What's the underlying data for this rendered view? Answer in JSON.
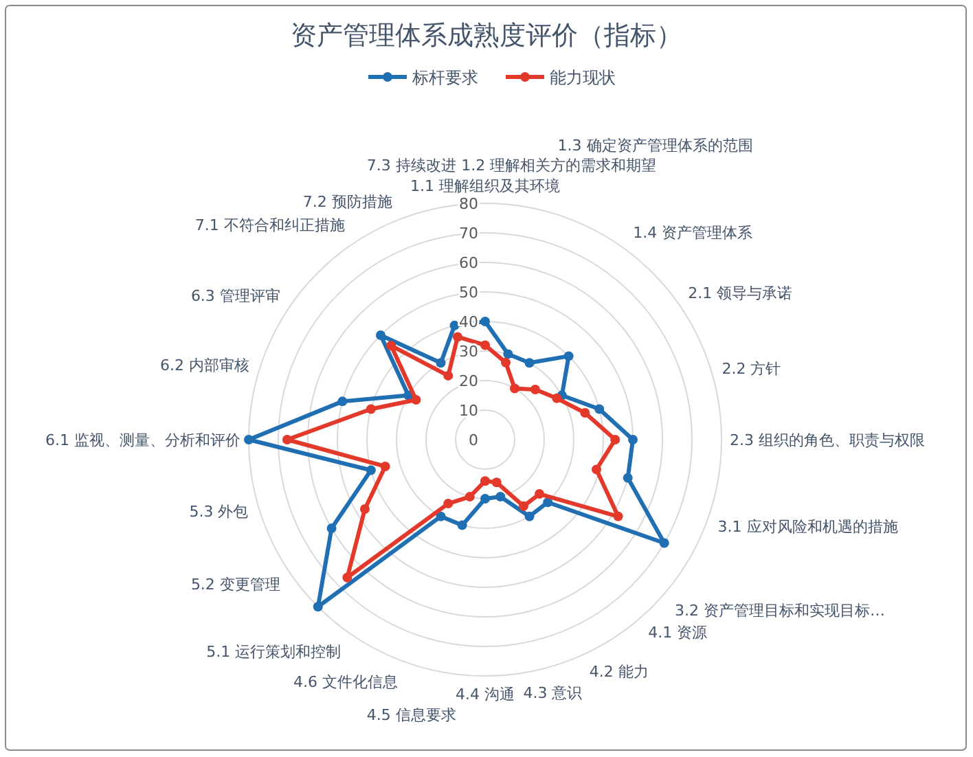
{
  "chart_data": {
    "type": "radar",
    "title": "资产管理体系成熟度评价（指标）",
    "categories": [
      "1.1 理解组织及其环境",
      "1.2 理解相关方的需求和期望",
      "1.3 确定资产管理体系的范围",
      "1.4 资产管理体系",
      "2.1 领导与承诺",
      "2.2 方针",
      "2.3 组织的角色、职责与权限",
      "3.1 应对风险和机遇的措施",
      "3.2 资产管理目标和实现目标…",
      "4.1 资源",
      "4.2 能力",
      "4.3 意识",
      "4.4 沟通",
      "4.5 信息要求",
      "4.6 文件化信息",
      "5.1 运行策划和控制",
      "5.2 变更管理",
      "5.3 外包",
      "6.1 监视、测量、分析和评价",
      "6.2 内部审核",
      "6.3 管理评审",
      "7.1 不符合和纠正措施",
      "7.2 预防措施",
      "7.3 持续改进"
    ],
    "series": [
      {
        "name": "标杆要求",
        "color": "#1f6fb2",
        "values": [
          40,
          30,
          30,
          40,
          30,
          40,
          50,
          50,
          70,
          30,
          30,
          20,
          20,
          30,
          30,
          80,
          60,
          40,
          80,
          50,
          30,
          50,
          30,
          40
        ]
      },
      {
        "name": "能力现状",
        "color": "#e3392b",
        "values": [
          32,
          27,
          20,
          24,
          28,
          35,
          44,
          39,
          52,
          26,
          26,
          15,
          14,
          20,
          25,
          66,
          47,
          35,
          67,
          40,
          27,
          45,
          25,
          36
        ]
      }
    ],
    "ylim": [
      0,
      80
    ],
    "yticks": [
      0,
      10,
      20,
      30,
      40,
      50,
      60,
      70,
      80
    ],
    "grid": true,
    "legend": "top",
    "marker": "circle",
    "line_style": "solid"
  }
}
